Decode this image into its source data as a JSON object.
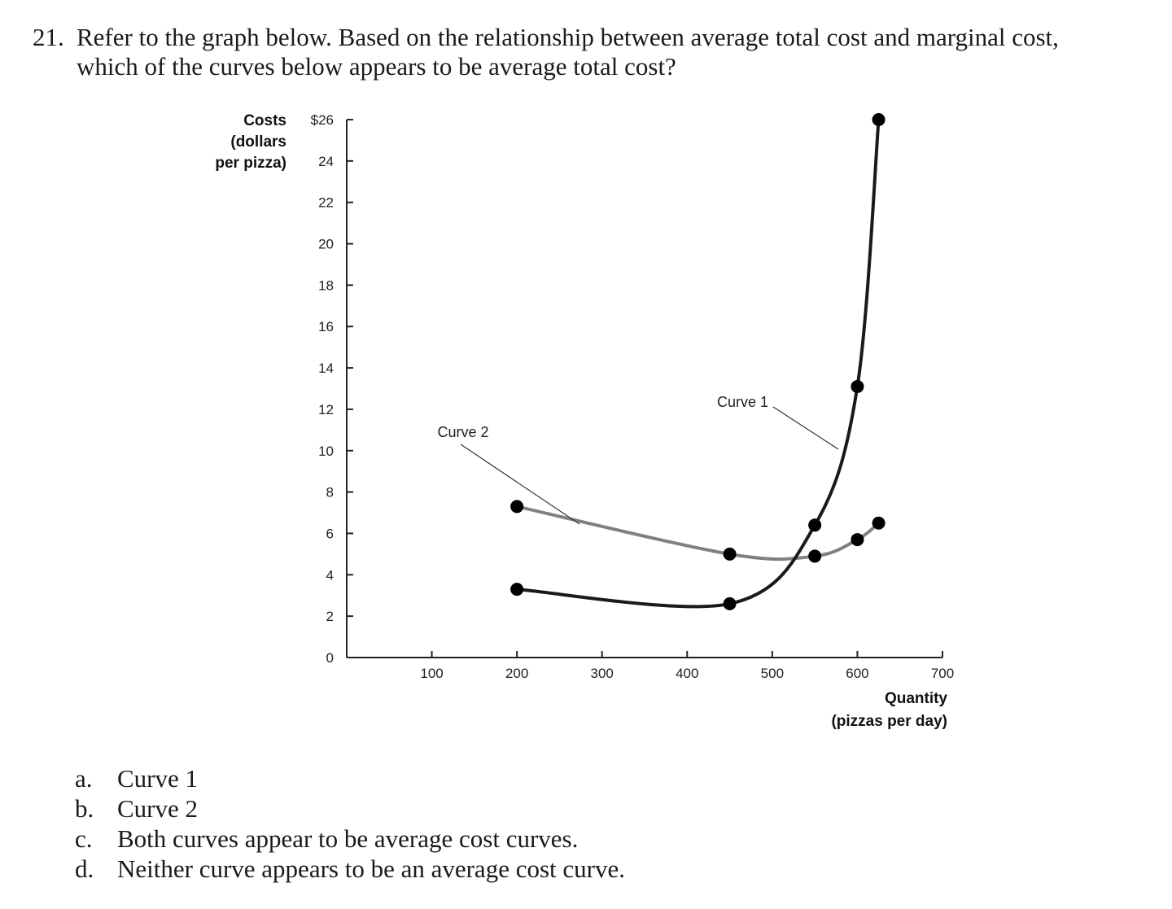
{
  "question": {
    "number": "21.",
    "line1": "Refer to the graph below. Based on the relationship between average total cost and marginal cost,",
    "line2": "which of the curves below appears to be average total cost?"
  },
  "chart_data": {
    "type": "line",
    "ylabel_lines": [
      "Costs",
      "(dollars",
      "per pizza)"
    ],
    "xlabel_lines": [
      "Quantity",
      "(pizzas per day)"
    ],
    "xlim": [
      0,
      700
    ],
    "ylim": [
      0,
      26
    ],
    "x_ticks": [
      "100",
      "200",
      "300",
      "400",
      "500",
      "600",
      "700"
    ],
    "y_ticks": [
      "0",
      "2",
      "4",
      "6",
      "8",
      "10",
      "12",
      "14",
      "16",
      "18",
      "20",
      "22",
      "24",
      "$26"
    ],
    "series": [
      {
        "name": "Curve 1",
        "color": "#1a1a1a",
        "points": [
          [
            200,
            3.3
          ],
          [
            450,
            2.6
          ],
          [
            550,
            6.4
          ],
          [
            600,
            13.1
          ],
          [
            625,
            26
          ]
        ]
      },
      {
        "name": "Curve 2",
        "color": "#808080",
        "points": [
          [
            200,
            7.3
          ],
          [
            450,
            5.0
          ],
          [
            550,
            4.9
          ],
          [
            600,
            5.7
          ],
          [
            625,
            6.5
          ]
        ]
      }
    ]
  },
  "answers": [
    {
      "letter": "a.",
      "text": "Curve 1"
    },
    {
      "letter": "b.",
      "text": "Curve 2"
    },
    {
      "letter": "c.",
      "text": "Both curves appear to be average cost curves."
    },
    {
      "letter": "d.",
      "text": "Neither curve appears to be an average cost curve."
    }
  ]
}
